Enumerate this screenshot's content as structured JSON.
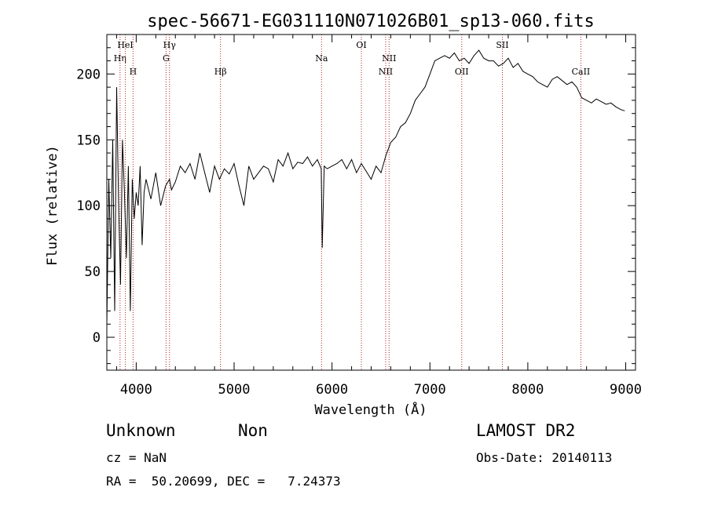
{
  "chart_data": {
    "type": "line",
    "title": "spec-56671-EG031110N071026B01_sp13-060.fits",
    "xlabel": "Wavelength (Å)",
    "ylabel": "Flux (relative)",
    "xlim": [
      3700,
      9100
    ],
    "ylim": [
      -25,
      230
    ],
    "x_ticks": [
      4000,
      5000,
      6000,
      7000,
      8000,
      9000
    ],
    "y_ticks": [
      0,
      50,
      100,
      150,
      200
    ],
    "grid": false,
    "line_color": "#000000",
    "marker_color": "#b22222",
    "series": [
      {
        "x": [
          3700,
          3720,
          3740,
          3760,
          3780,
          3800,
          3820,
          3840,
          3860,
          3880,
          3900,
          3920,
          3940,
          3960,
          3980,
          4000,
          4020,
          4040,
          4060,
          4080,
          4100,
          4150,
          4200,
          4250,
          4300,
          4340,
          4360,
          4400,
          4450,
          4500,
          4550,
          4600,
          4650,
          4700,
          4750,
          4800,
          4850,
          4900,
          4950,
          5000,
          5050,
          5100,
          5150,
          5200,
          5250,
          5300,
          5350,
          5400,
          5450,
          5500,
          5550,
          5600,
          5650,
          5700,
          5750,
          5800,
          5850,
          5890,
          5900,
          5920,
          5950,
          6000,
          6050,
          6100,
          6150,
          6200,
          6250,
          6300,
          6350,
          6400,
          6450,
          6500,
          6550,
          6600,
          6650,
          6700,
          6750,
          6800,
          6850,
          6900,
          6950,
          7000,
          7050,
          7100,
          7150,
          7200,
          7250,
          7300,
          7350,
          7400,
          7450,
          7500,
          7550,
          7600,
          7650,
          7700,
          7750,
          7800,
          7850,
          7900,
          7950,
          8000,
          8050,
          8100,
          8150,
          8200,
          8250,
          8300,
          8350,
          8400,
          8450,
          8500,
          8550,
          8600,
          8650,
          8700,
          8750,
          8800,
          8850,
          8900,
          8950,
          8990
        ],
        "y": [
          10,
          120,
          60,
          150,
          20,
          190,
          100,
          40,
          150,
          110,
          60,
          130,
          20,
          120,
          90,
          110,
          100,
          130,
          70,
          110,
          120,
          105,
          125,
          100,
          115,
          120,
          112,
          118,
          130,
          125,
          132,
          120,
          140,
          125,
          110,
          130,
          120,
          128,
          124,
          132,
          115,
          100,
          130,
          120,
          125,
          130,
          128,
          118,
          135,
          130,
          140,
          128,
          133,
          132,
          137,
          130,
          135,
          128,
          68,
          130,
          128,
          130,
          132,
          135,
          128,
          135,
          125,
          132,
          126,
          120,
          130,
          125,
          138,
          148,
          152,
          160,
          163,
          170,
          180,
          185,
          190,
          200,
          210,
          212,
          214,
          212,
          216,
          210,
          212,
          208,
          214,
          218,
          212,
          210,
          210,
          206,
          208,
          212,
          205,
          208,
          202,
          200,
          198,
          194,
          192,
          190,
          196,
          198,
          195,
          192,
          194,
          190,
          182,
          180,
          178,
          181,
          179,
          177,
          178,
          175,
          173,
          172
        ]
      }
    ],
    "line_markers": [
      {
        "label": "Hη",
        "wavelength": 3835,
        "row": 2
      },
      {
        "label": "HeI",
        "wavelength": 3889,
        "row": 1
      },
      {
        "label": "H",
        "wavelength": 3968,
        "row": 3
      },
      {
        "label": "Hγ",
        "wavelength": 4340,
        "row": 1
      },
      {
        "label": "G",
        "wavelength": 4305,
        "row": 2
      },
      {
        "label": "Hβ",
        "wavelength": 4861,
        "row": 3
      },
      {
        "label": "Na",
        "wavelength": 5893,
        "row": 2
      },
      {
        "label": "OI",
        "wavelength": 6300,
        "row": 1
      },
      {
        "label": "NII",
        "wavelength": 6583,
        "row": 2
      },
      {
        "label": "NII",
        "wavelength": 6548,
        "row": 3
      },
      {
        "label": "OII",
        "wavelength": 7325,
        "row": 3
      },
      {
        "label": "SII",
        "wavelength": 7740,
        "row": 1
      },
      {
        "label": "CaII",
        "wavelength": 8542,
        "row": 3
      }
    ]
  },
  "info": {
    "class": "Unknown",
    "subclass": "Non",
    "cz": "cz = NaN",
    "coords": "RA =  50.20699, DEC =   7.24373",
    "survey": "LAMOST DR2",
    "obs_date": "Obs-Date: 20140113"
  }
}
